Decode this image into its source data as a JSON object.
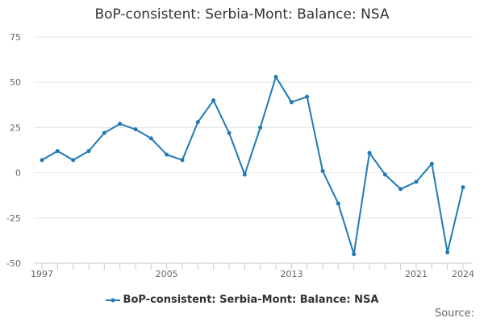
{
  "chart_data": {
    "type": "line",
    "title": "BoP-consistent: Serbia-Mont: Balance: NSA",
    "x": [
      1997,
      1998,
      1999,
      2000,
      2001,
      2002,
      2003,
      2004,
      2005,
      2006,
      2007,
      2008,
      2009,
      2010,
      2011,
      2012,
      2013,
      2014,
      2015,
      2016,
      2017,
      2018,
      2019,
      2020,
      2021,
      2022,
      2023,
      2024
    ],
    "series": [
      {
        "name": "BoP-consistent: Serbia-Mont: Balance: NSA",
        "values": [
          7,
          12,
          7,
          12,
          22,
          27,
          24,
          19,
          10,
          7,
          28,
          40,
          22,
          -1,
          25,
          53,
          39,
          42,
          1,
          -17,
          -45,
          11,
          -1,
          -9,
          -5,
          5,
          -44,
          -8
        ],
        "color": "#1f7ab5"
      }
    ],
    "ylim": [
      -50,
      75
    ],
    "yticks": [
      -50,
      -25,
      0,
      25,
      50,
      75
    ],
    "xlim": [
      1997,
      2024
    ],
    "xticks": [
      1997,
      2005,
      2013,
      2021,
      2024
    ],
    "grid": "horizontal",
    "legend": "bottom-center",
    "source_label": "Source:"
  }
}
